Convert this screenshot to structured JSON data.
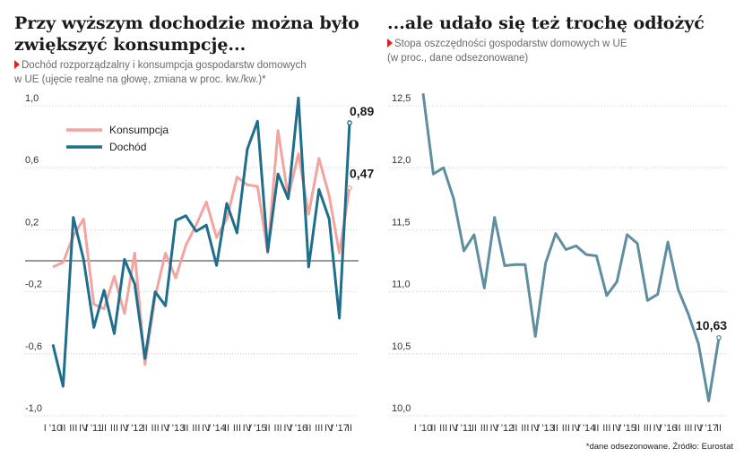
{
  "left": {
    "title": "Przy wyższym dochodzie można było zwiększyć konsumpcję...",
    "subtitle_line1": "Dochód rozporządzalny i konsumpcja gospodarstw domowych",
    "subtitle_line2": "w UE (ujęcie realne na głowę, zmiana w proc. kw./kw.)*"
  },
  "right": {
    "title": "...ale udało się też trochę odłożyć",
    "subtitle_line1": "Stopa oszczędności gospodarstw domowych w UE",
    "subtitle_line2": "(w proc., dane odsezonowane)"
  },
  "source": "*dane odsezonowane. Źródło: Eurostat",
  "colors": {
    "consumption": "#f2a4a0",
    "income": "#1f6e8c",
    "savings": "#5f8ea0",
    "accent": "#e0221f"
  },
  "chart_data": [
    {
      "type": "line",
      "x": [
        "I '10",
        "II",
        "III",
        "IV",
        "I '11",
        "II",
        "III",
        "IV",
        "I '12",
        "II",
        "III",
        "IV",
        "I '13",
        "II",
        "III",
        "IV",
        "I '14",
        "II",
        "III",
        "IV",
        "I '15",
        "II",
        "III",
        "IV",
        "I '16",
        "II",
        "III",
        "IV",
        "I '17",
        "II"
      ],
      "x_tick_labels": [
        "I '10",
        "II",
        "III",
        "IV",
        "I '11",
        "II",
        "III",
        "IV",
        "I '12",
        "II",
        "III",
        "IV",
        "I '13",
        "II",
        "III",
        "IV",
        "I '14",
        "II",
        "III",
        "IV",
        "I '15",
        "II",
        "III",
        "IV",
        "I '16",
        "II",
        "III",
        "IV",
        "I '17",
        "II"
      ],
      "ylim": [
        -1.0,
        1.0
      ],
      "y_ticks": [
        -1.0,
        -0.6,
        -0.2,
        0.2,
        0.6,
        1.0
      ],
      "y_tick_labels": [
        "-1,0",
        "-0,6",
        "-0,2",
        "0,2",
        "0,6",
        "1,0"
      ],
      "zero_line": true,
      "legend": "top-left",
      "series": [
        {
          "name": "Konsumpcja",
          "color_key": "consumption",
          "values": [
            -0.04,
            -0.01,
            0.16,
            0.27,
            -0.28,
            -0.31,
            -0.1,
            -0.34,
            0.05,
            -0.67,
            -0.23,
            0.05,
            -0.11,
            0.1,
            0.23,
            0.38,
            0.15,
            0.27,
            0.54,
            0.49,
            0.48,
            0.05,
            0.84,
            0.41,
            0.69,
            0.3,
            0.66,
            0.42,
            0.05,
            0.47
          ]
        },
        {
          "name": "Dochód",
          "color_key": "income",
          "values": [
            -0.54,
            -0.81,
            0.28,
            0.01,
            -0.43,
            -0.19,
            -0.47,
            0.01,
            -0.15,
            -0.63,
            -0.2,
            -0.29,
            0.26,
            0.29,
            0.19,
            0.23,
            -0.03,
            0.37,
            0.18,
            0.72,
            0.9,
            0.06,
            0.56,
            0.4,
            1.05,
            -0.04,
            0.46,
            0.27,
            -0.37,
            0.89
          ]
        }
      ],
      "annotations": [
        {
          "text": "0,89",
          "series": 1,
          "index": 29
        },
        {
          "text": "0,47",
          "series": 0,
          "index": 29
        }
      ]
    },
    {
      "type": "line",
      "x": [
        "I '10",
        "II",
        "III",
        "IV",
        "I '11",
        "II",
        "III",
        "IV",
        "I '12",
        "II",
        "III",
        "IV",
        "I '13",
        "II",
        "III",
        "IV",
        "I '14",
        "II",
        "III",
        "IV",
        "I '15",
        "II",
        "III",
        "IV",
        "I '16",
        "II",
        "III",
        "IV",
        "I '17",
        "II"
      ],
      "x_tick_labels": [
        "I '10",
        "II",
        "III",
        "IV",
        "I '11",
        "II",
        "III",
        "IV",
        "I '12",
        "II",
        "III",
        "IV",
        "I '13",
        "II",
        "III",
        "IV",
        "I '14",
        "II",
        "III",
        "IV",
        "I '15",
        "II",
        "III",
        "IV",
        "I '16",
        "II",
        "III",
        "IV",
        "I '17",
        "II"
      ],
      "ylim": [
        10.0,
        12.5
      ],
      "y_ticks": [
        10.0,
        10.5,
        11.0,
        11.5,
        12.0,
        12.5
      ],
      "y_tick_labels": [
        "10,0",
        "10,5",
        "11,0",
        "11,5",
        "12,0",
        "12,5"
      ],
      "series": [
        {
          "color_key": "savings",
          "values": [
            12.6,
            11.95,
            12.0,
            11.75,
            11.33,
            11.46,
            11.03,
            11.6,
            11.21,
            11.22,
            11.22,
            10.64,
            11.23,
            11.47,
            11.34,
            11.37,
            11.3,
            11.29,
            10.97,
            11.08,
            11.46,
            11.39,
            10.93,
            10.98,
            11.4,
            11.02,
            10.82,
            10.58,
            10.12,
            10.63
          ]
        }
      ],
      "annotations": [
        {
          "text": "10,63",
          "series": 0,
          "index": 29
        }
      ]
    }
  ]
}
